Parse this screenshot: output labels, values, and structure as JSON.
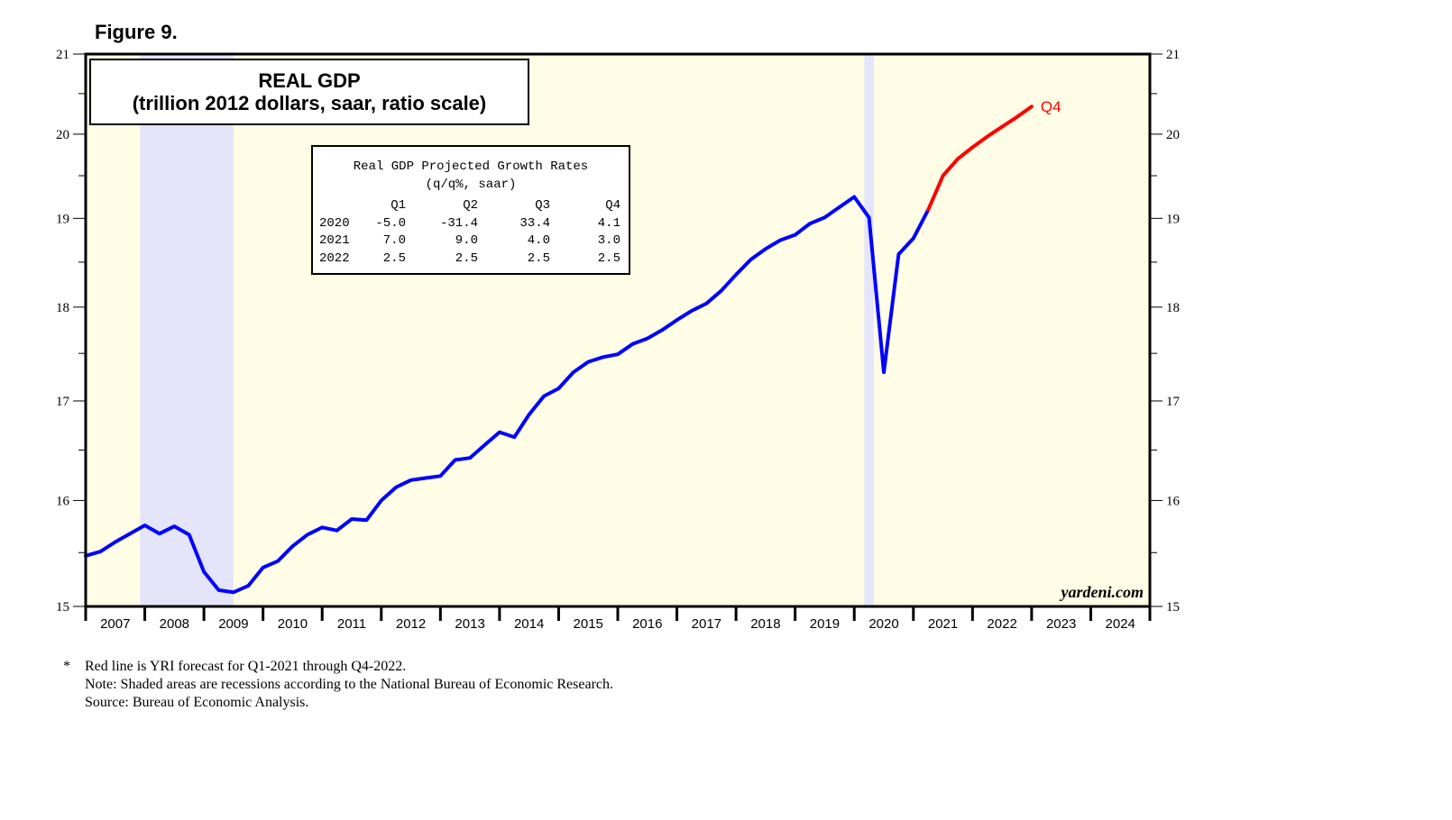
{
  "figure_label": "Figure 9.",
  "chart_data": {
    "type": "line",
    "title": "REAL GDP",
    "subtitle": "(trillion 2012 dollars, saar, ratio scale)",
    "scale": "log",
    "ylim": [
      15,
      21
    ],
    "y_ticks": [
      15,
      16,
      17,
      18,
      19,
      20,
      21
    ],
    "xlim": [
      2007,
      2025
    ],
    "x_tick_labels": [
      "2007",
      "2008",
      "2009",
      "2010",
      "2011",
      "2012",
      "2013",
      "2014",
      "2015",
      "2016",
      "2017",
      "2018",
      "2019",
      "2020",
      "2021",
      "2022",
      "2023",
      "2024"
    ],
    "recessions": [
      [
        2007.92,
        2009.5
      ],
      [
        2020.17,
        2020.33
      ]
    ],
    "series": [
      {
        "name": "Real GDP",
        "color": "#0000ff",
        "points": [
          [
            2007.0,
            15.47
          ],
          [
            2007.25,
            15.51
          ],
          [
            2007.5,
            15.6
          ],
          [
            2007.75,
            15.68
          ],
          [
            2008.0,
            15.76
          ],
          [
            2008.25,
            15.68
          ],
          [
            2008.5,
            15.75
          ],
          [
            2008.75,
            15.67
          ],
          [
            2009.0,
            15.32
          ],
          [
            2009.25,
            15.15
          ],
          [
            2009.5,
            15.13
          ],
          [
            2009.75,
            15.19
          ],
          [
            2010.0,
            15.36
          ],
          [
            2010.25,
            15.42
          ],
          [
            2010.5,
            15.56
          ],
          [
            2010.75,
            15.67
          ],
          [
            2011.0,
            15.74
          ],
          [
            2011.25,
            15.71
          ],
          [
            2011.5,
            15.82
          ],
          [
            2011.75,
            15.81
          ],
          [
            2012.0,
            16.0
          ],
          [
            2012.25,
            16.13
          ],
          [
            2012.5,
            16.2
          ],
          [
            2012.75,
            16.22
          ],
          [
            2013.0,
            16.24
          ],
          [
            2013.25,
            16.4
          ],
          [
            2013.5,
            16.42
          ],
          [
            2013.75,
            16.55
          ],
          [
            2014.0,
            16.68
          ],
          [
            2014.25,
            16.63
          ],
          [
            2014.5,
            16.86
          ],
          [
            2014.75,
            17.05
          ],
          [
            2015.0,
            17.13
          ],
          [
            2015.25,
            17.3
          ],
          [
            2015.5,
            17.41
          ],
          [
            2015.75,
            17.46
          ],
          [
            2016.0,
            17.49
          ],
          [
            2016.25,
            17.6
          ],
          [
            2016.5,
            17.66
          ],
          [
            2016.75,
            17.75
          ],
          [
            2017.0,
            17.86
          ],
          [
            2017.25,
            17.96
          ],
          [
            2017.5,
            18.04
          ],
          [
            2017.75,
            18.18
          ],
          [
            2018.0,
            18.36
          ],
          [
            2018.25,
            18.53
          ],
          [
            2018.5,
            18.65
          ],
          [
            2018.75,
            18.75
          ],
          [
            2019.0,
            18.81
          ],
          [
            2019.25,
            18.94
          ],
          [
            2019.5,
            19.01
          ],
          [
            2019.75,
            19.13
          ],
          [
            2020.0,
            19.25
          ],
          [
            2020.25,
            19.01
          ],
          [
            2020.5,
            17.3
          ],
          [
            2020.75,
            18.59
          ],
          [
            2021.0,
            18.77
          ],
          [
            2021.25,
            19.1
          ]
        ]
      },
      {
        "name": "YRI forecast",
        "color": "#ff0000",
        "end_label": "Q4",
        "points": [
          [
            2021.25,
            19.1
          ],
          [
            2021.5,
            19.5
          ],
          [
            2021.75,
            19.7
          ],
          [
            2022.0,
            19.84
          ],
          [
            2022.25,
            19.97
          ],
          [
            2022.5,
            20.09
          ],
          [
            2022.75,
            20.21
          ],
          [
            2023.0,
            20.34
          ]
        ]
      }
    ]
  },
  "table": {
    "title": "Real GDP Projected Growth Rates",
    "subtitle": "(q/q%, saar)",
    "headers": [
      "",
      "Q1",
      "Q2",
      "Q3",
      "Q4"
    ],
    "rows": [
      [
        "2020",
        "-5.0",
        "-31.4",
        "33.4",
        "4.1"
      ],
      [
        "2021",
        "7.0",
        "9.0",
        "4.0",
        "3.0"
      ],
      [
        "2022",
        "2.5",
        "2.5",
        "2.5",
        "2.5"
      ]
    ]
  },
  "brand": "yardeni.com",
  "notes": {
    "star": "*",
    "lines": [
      "Red line is YRI forecast for Q1-2021 through Q4-2022.",
      "Note: Shaded areas are recessions according to the National Bureau of Economic Research.",
      "Source: Bureau of Economic Analysis."
    ]
  },
  "colors": {
    "plot_bg": "#fffde6",
    "recession": "#e4e4fa",
    "historical": "#0000ff",
    "forecast": "#ff0000"
  }
}
